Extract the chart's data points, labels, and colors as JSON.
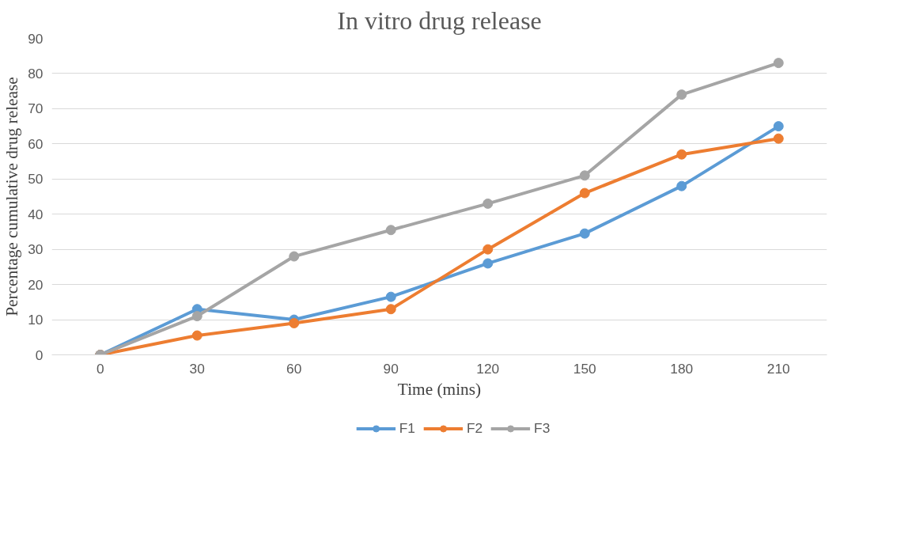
{
  "chart_data": {
    "type": "line",
    "title": "In vitro drug release",
    "xlabel": "Time (mins)",
    "ylabel": "Percentage cumulative drug release",
    "categories": [
      "0",
      "30",
      "60",
      "90",
      "120",
      "150",
      "180",
      "210"
    ],
    "series": [
      {
        "name": "F1",
        "color": "#5b9bd5",
        "values": [
          0,
          13,
          10,
          16.5,
          26,
          34.5,
          48,
          65
        ]
      },
      {
        "name": "F2",
        "color": "#ed7d31",
        "values": [
          0,
          5.5,
          9,
          13,
          30,
          46,
          57,
          61.5
        ]
      },
      {
        "name": "F3",
        "color": "#a5a5a5",
        "values": [
          0,
          11,
          28,
          35.5,
          43,
          51,
          74,
          83
        ]
      }
    ],
    "ylim": [
      0,
      90
    ],
    "yticks": [
      0,
      10,
      20,
      30,
      40,
      50,
      60,
      70,
      80,
      90
    ],
    "grid": "y",
    "legend": "bottom",
    "marker": "circle",
    "line_style": "solid"
  }
}
